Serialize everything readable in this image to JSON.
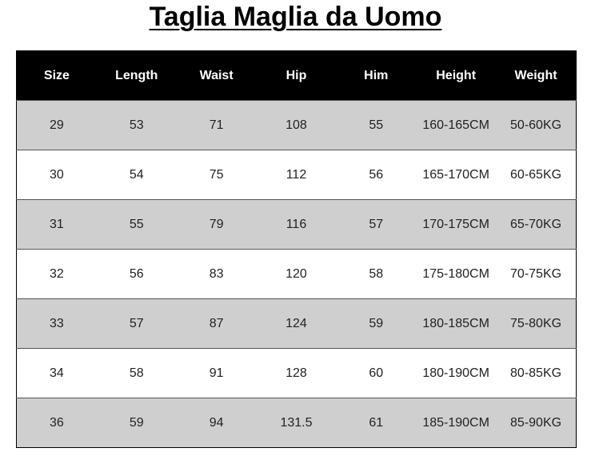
{
  "title": "Taglia Maglia da Uomo",
  "headers": [
    "Size",
    "Length",
    "Waist",
    "Hip",
    "Him",
    "Height",
    "Weight"
  ],
  "rows": [
    [
      "29",
      "53",
      "71",
      "108",
      "55",
      "160-165CM",
      "50-60KG"
    ],
    [
      "30",
      "54",
      "75",
      "112",
      "56",
      "165-170CM",
      "60-65KG"
    ],
    [
      "31",
      "55",
      "79",
      "116",
      "57",
      "170-175CM",
      "65-70KG"
    ],
    [
      "32",
      "56",
      "83",
      "120",
      "58",
      "175-180CM",
      "70-75KG"
    ],
    [
      "33",
      "57",
      "87",
      "124",
      "59",
      "180-185CM",
      "75-80KG"
    ],
    [
      "34",
      "58",
      "91",
      "128",
      "60",
      "180-190CM",
      "80-85KG"
    ],
    [
      "36",
      "59",
      "94",
      "131.5",
      "61",
      "185-190CM",
      "85-90KG"
    ]
  ],
  "colors": {
    "header_bg": "#000000",
    "row_alt": "#cfcfcf"
  }
}
